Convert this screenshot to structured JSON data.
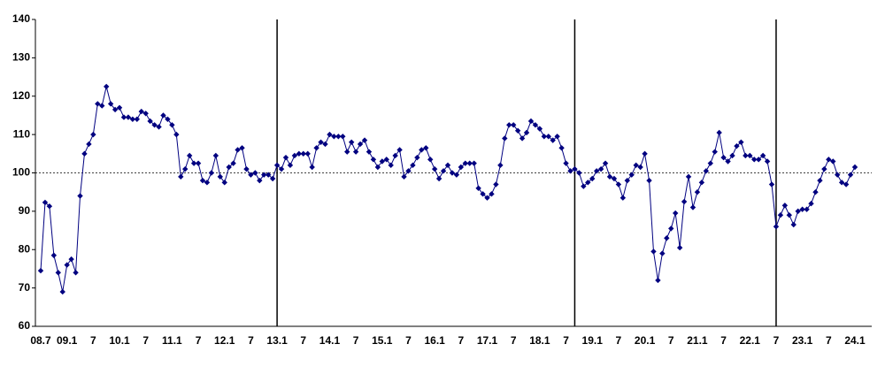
{
  "chart_data": {
    "type": "line",
    "categories": [
      "08.7",
      null,
      null,
      null,
      null,
      null,
      "09.1",
      null,
      null,
      null,
      null,
      null,
      "7",
      null,
      null,
      null,
      null,
      null,
      "10.1",
      null,
      null,
      null,
      null,
      null,
      "7",
      null,
      null,
      null,
      null,
      null,
      "11.1",
      null,
      null,
      null,
      null,
      null,
      "7",
      null,
      null,
      null,
      null,
      null,
      "12.1",
      null,
      null,
      null,
      null,
      null,
      "7",
      null,
      null,
      null,
      null,
      null,
      "13.1",
      null,
      null,
      null,
      null,
      null,
      "7",
      null,
      null,
      null,
      null,
      null,
      "14.1",
      null,
      null,
      null,
      null,
      null,
      "7",
      null,
      null,
      null,
      null,
      null,
      "15.1",
      null,
      null,
      null,
      null,
      null,
      "7",
      null,
      null,
      null,
      null,
      null,
      "16.1",
      null,
      null,
      null,
      null,
      null,
      "7",
      null,
      null,
      null,
      null,
      null,
      "17.1",
      null,
      null,
      null,
      null,
      null,
      "7",
      null,
      null,
      null,
      null,
      null,
      "18.1",
      null,
      null,
      null,
      null,
      null,
      "7",
      null,
      null,
      null,
      null,
      null,
      "19.1",
      null,
      null,
      null,
      null,
      null,
      "7",
      null,
      null,
      null,
      null,
      null,
      "20.1",
      null,
      null,
      null,
      null,
      null,
      "7",
      null,
      null,
      null,
      null,
      null,
      "21.1",
      null,
      null,
      null,
      null,
      null,
      "7",
      null,
      null,
      null,
      null,
      null,
      "22.1",
      null,
      null,
      null,
      null,
      null,
      "7",
      null,
      null,
      null,
      null,
      null,
      "23.1",
      null,
      null,
      null,
      null,
      null,
      "7",
      null,
      null,
      null,
      null,
      null,
      "24.1"
    ],
    "values": [
      74.5,
      92.3,
      91.3,
      78.5,
      74,
      69,
      76,
      77.5,
      74,
      94,
      105,
      107.5,
      110,
      118,
      117.5,
      122.5,
      118,
      116.5,
      117,
      114.5,
      114.5,
      114,
      114,
      116,
      115.5,
      113.5,
      112.5,
      112,
      115,
      114,
      112.5,
      110,
      99,
      101,
      104.5,
      102.5,
      102.5,
      98,
      97.5,
      100,
      104.5,
      99,
      97.5,
      101.5,
      102.5,
      106,
      106.5,
      101,
      99.5,
      100,
      98,
      99.5,
      99.5,
      98.5,
      102,
      101,
      104,
      102,
      104.5,
      105,
      105,
      105,
      101.5,
      106.5,
      108,
      107.5,
      110,
      109.5,
      109.5,
      109.5,
      105.5,
      108,
      105.5,
      107.5,
      108.5,
      105.5,
      103.5,
      101.5,
      103,
      103.5,
      102,
      104.5,
      106,
      99,
      100.5,
      102,
      104,
      106,
      106.5,
      103.5,
      101,
      98.5,
      100.5,
      102,
      100,
      99.5,
      101.5,
      102.5,
      102.5,
      102.5,
      96,
      94.5,
      93.5,
      94.5,
      97,
      102,
      109,
      112.5,
      112.5,
      111,
      109,
      110.5,
      113.5,
      112.5,
      111.5,
      109.5,
      109.5,
      108.5,
      109.5,
      106.5,
      102.5,
      100.5,
      101,
      100,
      96.5,
      97.5,
      98.5,
      100.5,
      101,
      102.5,
      99,
      98.5,
      97,
      93.5,
      98,
      99.5,
      102,
      101.5,
      105,
      98,
      79.5,
      72,
      79,
      83,
      85.5,
      89.5,
      80.5,
      92.5,
      99,
      91,
      95,
      97.5,
      100.5,
      102.5,
      105.5,
      110.5,
      104,
      103,
      104.5,
      107,
      108,
      104.5,
      104.5,
      103.5,
      103.5,
      104.5,
      103,
      97,
      86,
      89,
      91.5,
      89,
      86.5,
      90,
      90.5,
      90.5,
      92,
      95,
      98,
      101,
      103.5,
      103,
      99.5,
      97.5,
      97,
      99.5,
      101.5
    ],
    "color": "#000080",
    "ylim": [
      60,
      140
    ],
    "yticks": [
      60,
      70,
      80,
      90,
      100,
      110,
      120,
      130,
      140
    ],
    "reference_y": 100,
    "vertical_lines": [
      54,
      122,
      168
    ]
  }
}
